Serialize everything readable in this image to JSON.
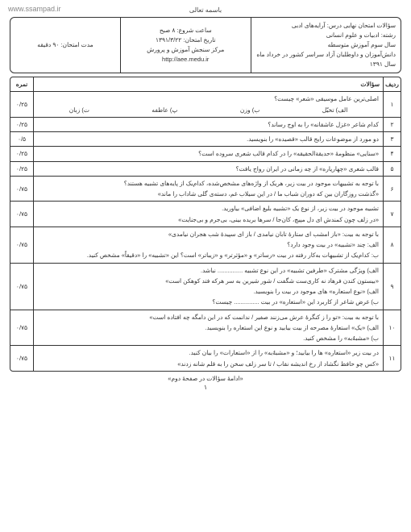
{
  "watermark": "www.ssampad.ir",
  "bismillah": "باسمه تعالی",
  "header": {
    "right": {
      "l1": "سؤالات امتحان نهایی درس: آرایه‌های ادبی",
      "l2": "رشته: ادبیات و علوم انسانی",
      "l3": "سال سوم آموزش متوسطه",
      "l4": "دانش‌آموزان و داوطلبان آزاد سراسر کشور در خرداد ماه سال ۱۳۹۱"
    },
    "mid": {
      "l1": "ساعت شروع: ۸ صبح",
      "l2": "تاریخ امتحان: ۱۳۹۱/۳/۲۲",
      "l3": "مرکز سنجش آموزش و پرورش",
      "l4": "http://aee.medu.ir"
    },
    "left": {
      "l1": "مدت امتحان: ۹۰ دقیقه",
      "l2": "",
      "l3": ""
    }
  },
  "table_head": {
    "num": "ردیف",
    "text": "سؤالات",
    "score": "نمره"
  },
  "questions": [
    {
      "n": "۱",
      "score": "۰/۲۵",
      "text": "اصلی‌ترین عامل موسیقی «شعر» چیست؟",
      "opts": [
        "الف) تخیّل",
        "ب) وزن",
        "پ) عاطفه",
        "ت) زبان"
      ]
    },
    {
      "n": "۲",
      "score": "۰/۲۵",
      "text": "کدام شاعر «غزل عاشقانه» را به اوج رساند؟"
    },
    {
      "n": "۳",
      "score": "۰/۵",
      "text": "دو مورد از موضوعات رایج قالب «قصیده» را بنویسید."
    },
    {
      "n": "۴",
      "score": "۰/۲۵",
      "text": "«سنایی» منظومهٔ «حدیقة‌الحقیقه» را در کدام قالب شعری سروده است؟"
    },
    {
      "n": "۵",
      "score": "۰/۲۵",
      "text": "قالب شعری «چهارپاره» از چه زمانی در ایران رواج یافت؟"
    },
    {
      "n": "۶",
      "score": "۰/۷۵",
      "text": "با توجه به تشبیهات موجود در بیت زیر، هریک از واژه‌های مشخص‌شده، کدام‌یک از پایه‌های تشبیه هستند؟",
      "subs": [
        "«گذشت روزگاران بین که دوران شباب ما / در این سیلاب غم، دسته‌ی گلی شاداب را ماند»"
      ]
    },
    {
      "n": "۷",
      "score": "۰/۷۵",
      "text": "تشبیه موجود در بیت زیر، از نوع یک «تشبیه بلیغ اضافی» بیاورید.",
      "subs": [
        "«در زلف چون کمندش ای دل مپیچ، کان‌جا / سرها بریده بینی، بی‌جرم و بی‌جنایت»"
      ]
    },
    {
      "n": "۸",
      "score": "۰/۷۵",
      "text": "با توجه به بیت: «باز امشب ای ستارهٔ تابان نیامدی / باز ای سپیدهٔ شب هجران نیامدی»",
      "subs": [
        "الف: چند «تشبیه» در بیت وجود دارد؟",
        "ب: کدام‌یک از تشبیهات به‌کار رفته در بیت «رساتر» و «مؤثرتر» و «زیباتر» است؟ این «تشبیه» را «دقیقاً» مشخص کنید."
      ]
    },
    {
      "n": "۹",
      "score": "۰/۷۵",
      "text": "الف) ویژگی مشترک «طرفین تشبیه» در این نوع تشبیه ............... نباشد.",
      "subs": [
        "«بیستون کندن فرهاد نه کاری‌ست شگفت / شور شیرین به سر هرکه فتد کوهکن است»",
        "الف) «نوع استعاره» های موجود در بیت را بنویسید.",
        "ب) غرض شاعر از کاربرد این «استعاره» در بیت ............... چیست؟"
      ]
    },
    {
      "n": "۱۰",
      "score": "۰/۷۵",
      "text": "با توجه به بیت: «تو را ز کنگرهٔ عرش می‌زنند صفیر / ندانمت که در این دامگه چه افتاده است»",
      "subs": [
        "الف) «یک» استعارهٔ مصرحه از بیت بیابید و نوع این استعاره را بنویسید.",
        "ب) «مشبهٌ‌به» را مشخص کنید."
      ]
    },
    {
      "n": "۱۱",
      "score": "۰/۷۵",
      "text": "در بیت زیر «استعاره» ها را بیابید؛ و «مشبهٌ‌به» را از «استعارات» را بیان کنید.",
      "subs": [
        "«کس چو حافظ نگشاد از رخ اندیشه نقاب / تا سر زلف سخن را به قلم شانه زدند»"
      ]
    }
  ],
  "footer": "«ادامهٔ سؤالات در صفحهٔ دوم»",
  "page_num": "۱"
}
